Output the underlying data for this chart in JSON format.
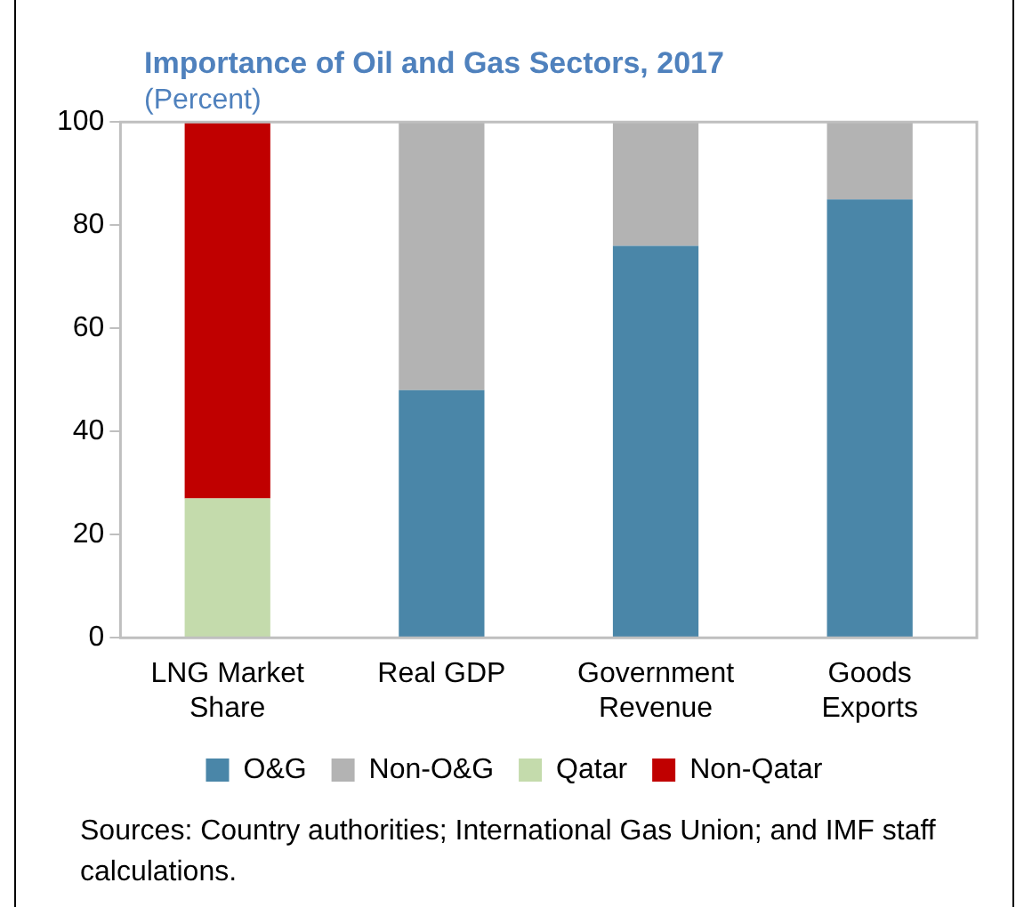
{
  "chart_data": {
    "type": "bar",
    "stacked": true,
    "title": "Importance of Oil and Gas Sectors, 2017",
    "subtitle": "(Percent)",
    "categories": [
      "LNG Market Share",
      "Real GDP",
      "Government Revenue",
      "Goods Exports"
    ],
    "series": [
      {
        "name": "O&G",
        "color": "#4a86a8",
        "values": [
          null,
          48,
          76,
          85
        ]
      },
      {
        "name": "Non-O&G",
        "color": "#b3b3b3",
        "values": [
          null,
          52,
          24,
          15
        ]
      },
      {
        "name": "Qatar",
        "color": "#c4dbac",
        "values": [
          27,
          null,
          null,
          null
        ]
      },
      {
        "name": "Non-Qatar",
        "color": "#c00000",
        "values": [
          73,
          null,
          null,
          null
        ]
      }
    ],
    "ylim": [
      0,
      100
    ],
    "yticks": [
      0,
      20,
      40,
      60,
      80,
      100
    ],
    "grid": false,
    "legend": "bottom",
    "annotations": [
      "Sources: Country authorities; International Gas Union; and IMF staff calculations."
    ]
  }
}
